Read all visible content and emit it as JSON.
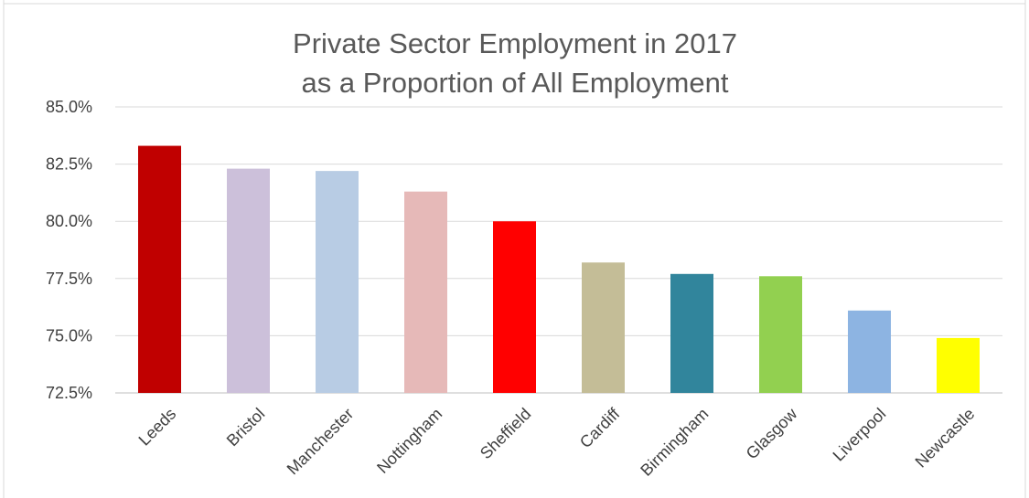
{
  "chart_data": {
    "type": "bar",
    "title_lines": [
      "Private Sector Employment in 2017",
      "as a Proportion of All  Employment"
    ],
    "categories": [
      "Leeds",
      "Bristol",
      "Manchester",
      "Nottingham",
      "Sheffield",
      "Cardiff",
      "Birmingham",
      "Glasgow",
      "Liverpool",
      "Newcastle"
    ],
    "values": [
      83.3,
      82.3,
      82.2,
      81.3,
      80.0,
      78.2,
      77.7,
      77.6,
      76.1,
      74.9
    ],
    "colors": [
      "#c00000",
      "#ccc0da",
      "#b8cce4",
      "#e6b9b8",
      "#ff0000",
      "#c4bd97",
      "#31859c",
      "#92d050",
      "#8db4e2",
      "#ffff00"
    ],
    "ylim": [
      72.5,
      85.0
    ],
    "yticks": [
      "72.5%",
      "75.0%",
      "77.5%",
      "80.0%",
      "82.5%",
      "85.0%"
    ],
    "grid": true,
    "legend": "none"
  }
}
